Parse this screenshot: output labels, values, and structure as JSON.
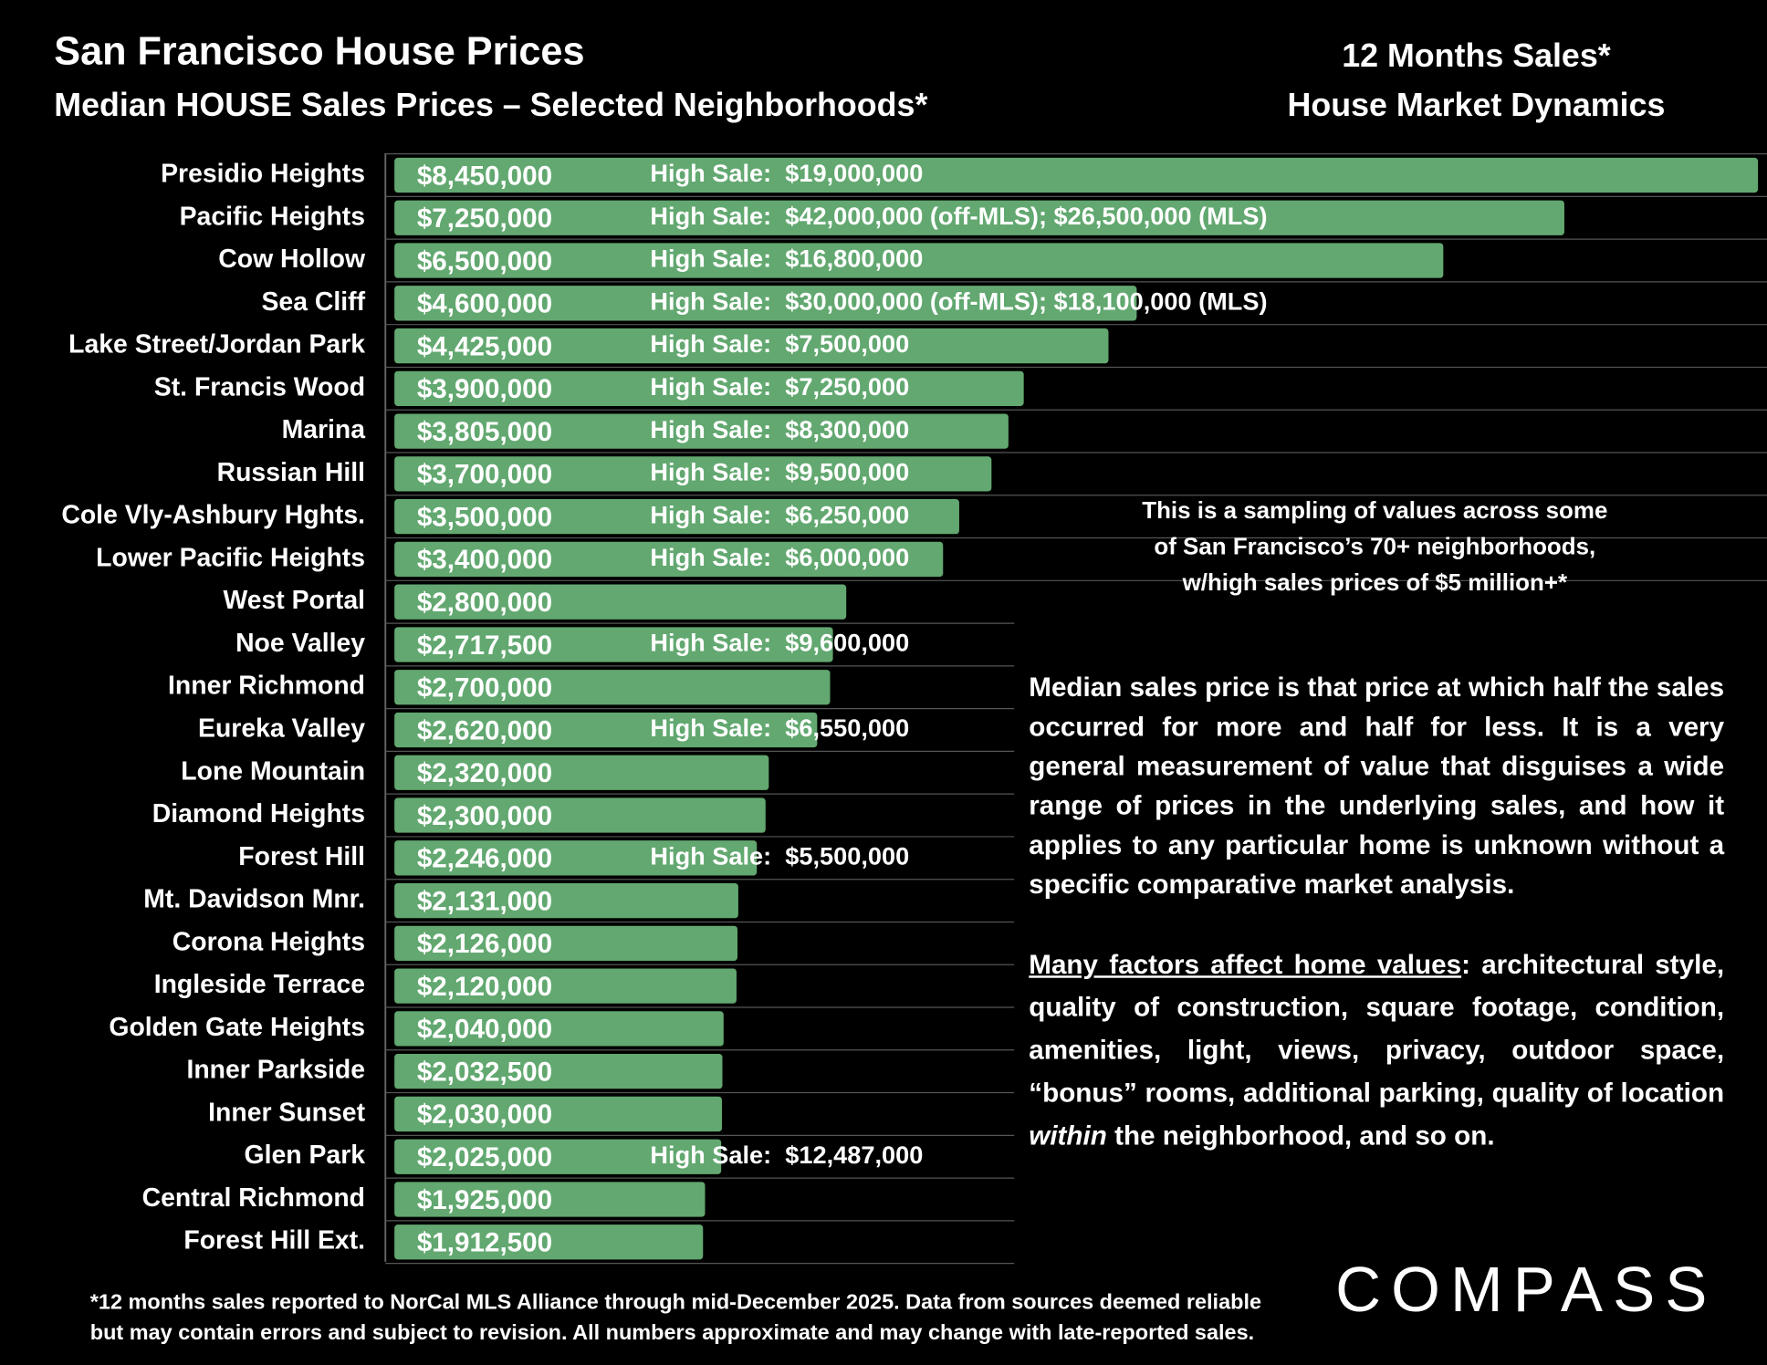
{
  "chart_data": {
    "type": "bar",
    "orientation": "horizontal",
    "title": "San Francisco House Prices",
    "subtitle": "Median HOUSE Sales Prices – Selected Neighborhoods*",
    "color": "#62a870",
    "xlim": [
      0,
      8450000
    ],
    "categories": [
      "Presidio Heights",
      "Pacific Heights",
      "Cow Hollow",
      "Sea Cliff",
      "Lake Street/Jordan Park",
      "St. Francis Wood",
      "Marina",
      "Russian Hill",
      "Cole Vly-Ashbury Hghts.",
      "Lower Pacific Heights",
      "West Portal",
      "Noe Valley",
      "Inner Richmond",
      "Eureka Valley",
      "Lone Mountain",
      "Diamond Heights",
      "Forest Hill",
      "Mt. Davidson Mnr.",
      "Corona Heights",
      "Ingleside Terrace",
      "Golden Gate Heights",
      "Inner Parkside",
      "Inner Sunset",
      "Glen Park",
      "Central Richmond",
      "Forest Hill Ext."
    ],
    "values": [
      8450000,
      7250000,
      6500000,
      4600000,
      4425000,
      3900000,
      3805000,
      3700000,
      3500000,
      3400000,
      2800000,
      2717500,
      2700000,
      2620000,
      2320000,
      2300000,
      2246000,
      2131000,
      2126000,
      2120000,
      2040000,
      2032500,
      2030000,
      2025000,
      1925000,
      1912500
    ],
    "value_labels": [
      "$8,450,000",
      "$7,250,000",
      "$6,500,000",
      "$4,600,000",
      "$4,425,000",
      "$3,900,000",
      "$3,805,000",
      "$3,700,000",
      "$3,500,000",
      "$3,400,000",
      "$2,800,000",
      "$2,717,500",
      "$2,700,000",
      "$2,620,000",
      "$2,320,000",
      "$2,300,000",
      "$2,246,000",
      "$2,131,000",
      "$2,126,000",
      "$2,120,000",
      "$2,040,000",
      "$2,032,500",
      "$2,030,000",
      "$2,025,000",
      "$1,925,000",
      "$1,912,500"
    ],
    "high_sales": [
      "High Sale:  $19,000,000",
      "High Sale:  $42,000,000 (off-MLS); $26,500,000 (MLS)",
      "High Sale:  $16,800,000",
      "High Sale:  $30,000,000 (off-MLS); $18,100,000 (MLS)",
      "High Sale:  $7,500,000",
      "High Sale:  $7,250,000",
      "High Sale:  $8,300,000",
      "High Sale:  $9,500,000",
      "High Sale:  $6,250,000",
      "High Sale:  $6,000,000",
      null,
      "High Sale:  $9,600,000",
      null,
      "High Sale:  $6,550,000",
      null,
      null,
      "High Sale:  $5,500,000",
      null,
      null,
      null,
      null,
      null,
      null,
      "High Sale:  $12,487,000",
      null,
      null
    ]
  },
  "side_header": [
    "12 Months Sales*",
    "House Market Dynamics"
  ],
  "note": [
    "This is a sampling of values across some",
    "of San Francisco’s 70+ neighborhoods,",
    "w/high sales prices of $5 million+*"
  ],
  "paragraph_1": "Median sales price is that price at which half the sales occurred for more and half for less. It is a very general measurement of value that disguises a wide range of prices in the underlying sales, and how it applies to any particular home is unknown without a specific comparative market analysis.",
  "paragraph_2": [
    "Many factors affect home values",
    ": architectural style, quality of construction, square footage, condition, amenities, light, views, privacy, outdoor space, “bonus” rooms, additional parking, quality of location ",
    "within",
    " the neighborhood, and so on."
  ],
  "footnote": [
    "*12 months sales reported to NorCal MLS Alliance through mid-December 2025. Data from sources deemed reliable",
    "but may contain errors and subject to revision. All numbers approximate and may change with late-reported sales."
  ],
  "logo": "COMPASS"
}
